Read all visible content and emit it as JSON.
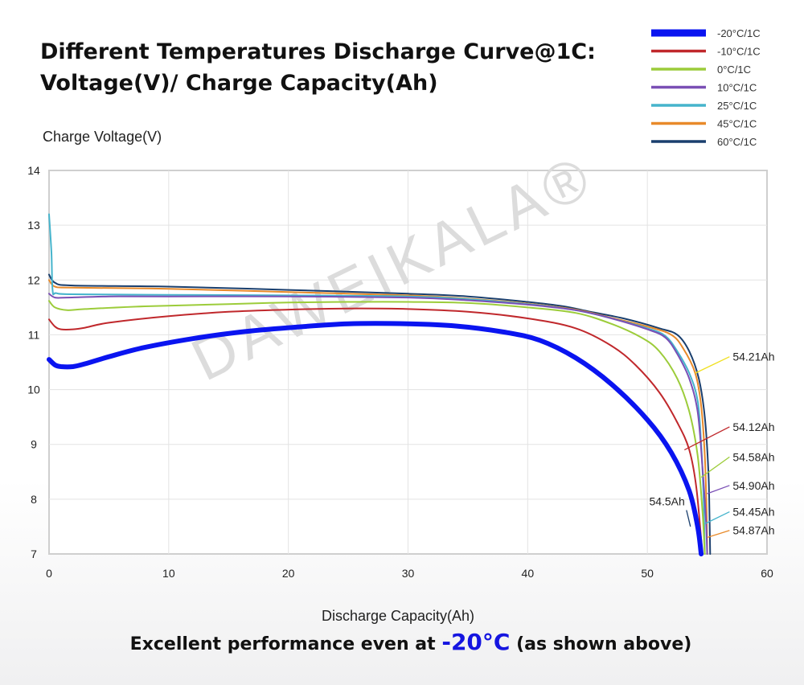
{
  "chart_data": {
    "type": "line",
    "title": [
      "Different Temperatures Discharge Curve@1C:",
      "Voltage(V)/ Charge Capacity(Ah)"
    ],
    "ylabel": "Charge Voltage(V)",
    "xlabel": "Discharge Capacity(Ah)",
    "xlim": [
      0,
      60
    ],
    "ylim": [
      7,
      14
    ],
    "xticks": [
      0,
      10,
      20,
      30,
      40,
      50,
      60
    ],
    "yticks": [
      7,
      8,
      9,
      10,
      11,
      12,
      13,
      14
    ],
    "grid": true,
    "legend_position": "top-right",
    "watermark": "DAWEIKALA®",
    "series": [
      {
        "name": "-20°C/1C",
        "color": "#0a14f0",
        "width": 6,
        "points": [
          [
            0,
            10.55
          ],
          [
            0.5,
            10.45
          ],
          [
            1,
            10.42
          ],
          [
            2,
            10.42
          ],
          [
            3,
            10.47
          ],
          [
            5,
            10.6
          ],
          [
            8,
            10.77
          ],
          [
            12,
            10.93
          ],
          [
            16,
            11.05
          ],
          [
            20,
            11.13
          ],
          [
            25,
            11.2
          ],
          [
            30,
            11.2
          ],
          [
            34,
            11.16
          ],
          [
            38,
            11.05
          ],
          [
            41,
            10.9
          ],
          [
            44,
            10.58
          ],
          [
            47,
            10.1
          ],
          [
            50,
            9.45
          ],
          [
            52,
            8.85
          ],
          [
            53.5,
            8.15
          ],
          [
            54.2,
            7.5
          ],
          [
            54.5,
            7.0
          ]
        ]
      },
      {
        "name": "-10°C/1C",
        "color": "#c0282c",
        "width": 2,
        "points": [
          [
            0,
            11.28
          ],
          [
            0.5,
            11.15
          ],
          [
            1,
            11.1
          ],
          [
            2,
            11.1
          ],
          [
            3,
            11.13
          ],
          [
            5,
            11.22
          ],
          [
            10,
            11.34
          ],
          [
            15,
            11.42
          ],
          [
            20,
            11.46
          ],
          [
            25,
            11.48
          ],
          [
            30,
            11.47
          ],
          [
            35,
            11.42
          ],
          [
            40,
            11.3
          ],
          [
            44,
            11.12
          ],
          [
            47,
            10.8
          ],
          [
            49,
            10.45
          ],
          [
            51,
            9.95
          ],
          [
            52.5,
            9.4
          ],
          [
            53.5,
            8.9
          ],
          [
            54.1,
            8.2
          ],
          [
            54.6,
            7.0
          ]
        ]
      },
      {
        "name": "0°C/1C",
        "color": "#9ccc3a",
        "width": 2,
        "points": [
          [
            0,
            11.62
          ],
          [
            0.5,
            11.5
          ],
          [
            1.5,
            11.45
          ],
          [
            3,
            11.47
          ],
          [
            8,
            11.52
          ],
          [
            15,
            11.56
          ],
          [
            20,
            11.59
          ],
          [
            25,
            11.6
          ],
          [
            30,
            11.6
          ],
          [
            35,
            11.58
          ],
          [
            40,
            11.5
          ],
          [
            44,
            11.4
          ],
          [
            47,
            11.2
          ],
          [
            49.5,
            10.95
          ],
          [
            51,
            10.7
          ],
          [
            52.5,
            10.2
          ],
          [
            53.5,
            9.6
          ],
          [
            54.2,
            8.8
          ],
          [
            54.6,
            7.8
          ],
          [
            54.8,
            7.0
          ]
        ]
      },
      {
        "name": "10°C/1C",
        "color": "#7a4fb5",
        "width": 2,
        "points": [
          [
            0,
            11.75
          ],
          [
            0.5,
            11.68
          ],
          [
            1.5,
            11.68
          ],
          [
            5,
            11.7
          ],
          [
            10,
            11.7
          ],
          [
            20,
            11.7
          ],
          [
            30,
            11.68
          ],
          [
            35,
            11.63
          ],
          [
            40,
            11.55
          ],
          [
            44,
            11.45
          ],
          [
            47,
            11.3
          ],
          [
            50,
            11.1
          ],
          [
            51.5,
            10.95
          ],
          [
            52.5,
            10.65
          ],
          [
            53.5,
            10.2
          ],
          [
            54.2,
            9.6
          ],
          [
            54.6,
            8.6
          ],
          [
            54.9,
            7.6
          ],
          [
            55,
            7.0
          ]
        ]
      },
      {
        "name": "25°C/1C",
        "color": "#46b4cc",
        "width": 2,
        "points": [
          [
            0,
            13.2
          ],
          [
            0.2,
            12.5
          ],
          [
            0.3,
            11.8
          ],
          [
            0.6,
            11.76
          ],
          [
            2,
            11.74
          ],
          [
            10,
            11.73
          ],
          [
            20,
            11.72
          ],
          [
            30,
            11.7
          ],
          [
            35,
            11.65
          ],
          [
            40,
            11.56
          ],
          [
            44,
            11.45
          ],
          [
            47,
            11.3
          ],
          [
            50,
            11.12
          ],
          [
            51.5,
            10.98
          ],
          [
            52.5,
            10.7
          ],
          [
            53.5,
            10.3
          ],
          [
            54.2,
            9.8
          ],
          [
            54.5,
            9.0
          ],
          [
            54.7,
            8.0
          ],
          [
            54.8,
            7.0
          ]
        ]
      },
      {
        "name": "45°C/1C",
        "color": "#e88a2a",
        "width": 2,
        "points": [
          [
            0,
            12.0
          ],
          [
            0.5,
            11.88
          ],
          [
            2,
            11.86
          ],
          [
            10,
            11.84
          ],
          [
            20,
            11.78
          ],
          [
            30,
            11.72
          ],
          [
            35,
            11.66
          ],
          [
            40,
            11.57
          ],
          [
            44,
            11.46
          ],
          [
            47,
            11.31
          ],
          [
            50,
            11.15
          ],
          [
            52,
            11.0
          ],
          [
            53,
            10.75
          ],
          [
            54,
            10.3
          ],
          [
            54.5,
            9.7
          ],
          [
            54.8,
            8.8
          ],
          [
            54.95,
            7.8
          ],
          [
            55,
            7.0
          ]
        ]
      },
      {
        "name": "60°C/1C",
        "color": "#1a3f6e",
        "width": 2,
        "points": [
          [
            0,
            12.1
          ],
          [
            0.5,
            11.95
          ],
          [
            2,
            11.9
          ],
          [
            10,
            11.88
          ],
          [
            20,
            11.82
          ],
          [
            30,
            11.75
          ],
          [
            35,
            11.7
          ],
          [
            40,
            11.6
          ],
          [
            43,
            11.52
          ],
          [
            45,
            11.43
          ],
          [
            48,
            11.3
          ],
          [
            51,
            11.12
          ],
          [
            52.5,
            11.0
          ],
          [
            53.5,
            10.7
          ],
          [
            54.3,
            10.2
          ],
          [
            54.8,
            9.5
          ],
          [
            55.1,
            8.5
          ],
          [
            55.2,
            7.6
          ],
          [
            55.25,
            7.0
          ]
        ]
      }
    ],
    "annotations": [
      {
        "text": "54.21Ah",
        "color": "#f0e020",
        "point": [
          54.0,
          10.3
        ],
        "label": [
          57,
          10.6
        ],
        "anchor": "start"
      },
      {
        "text": "54.12Ah",
        "color": "#c0282c",
        "point": [
          53.1,
          8.9
        ],
        "label": [
          57,
          9.32
        ],
        "anchor": "start"
      },
      {
        "text": "54.58Ah",
        "color": "#9ccc3a",
        "point": [
          54.5,
          8.4
        ],
        "label": [
          57,
          8.77
        ],
        "anchor": "start"
      },
      {
        "text": "54.90Ah",
        "color": "#7a4fb5",
        "point": [
          55.0,
          8.1
        ],
        "label": [
          57,
          8.25
        ],
        "anchor": "start"
      },
      {
        "text": "54.45Ah",
        "color": "#46b4cc",
        "point": [
          54.8,
          7.55
        ],
        "label": [
          57,
          7.77
        ],
        "anchor": "start"
      },
      {
        "text": "54.87Ah",
        "color": "#e88a2a",
        "point": [
          55.0,
          7.3
        ],
        "label": [
          57,
          7.43
        ],
        "anchor": "start"
      },
      {
        "text": "54.5Ah",
        "color": "#1a3f6e",
        "point": [
          53.6,
          7.5
        ],
        "label": [
          53.0,
          7.8
        ],
        "anchor": "end"
      }
    ]
  },
  "footer": {
    "prefix": "Excellent performance even at ",
    "highlight": "-20°C",
    "suffix": " (as shown above)",
    "highlight_color": "#1515e0"
  }
}
